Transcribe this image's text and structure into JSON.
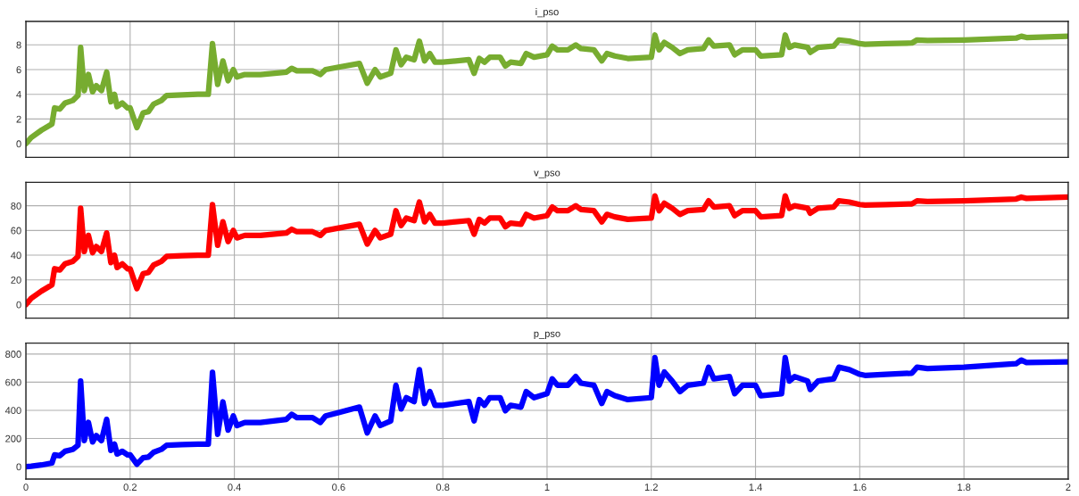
{
  "chart_data": [
    {
      "type": "line",
      "title": "i_pso",
      "color": "#77ac30",
      "grid": true,
      "tick_labels": "y",
      "x": [
        0,
        0.01,
        0.03,
        0.05,
        0.055,
        0.065,
        0.075,
        0.09,
        0.1,
        0.105,
        0.112,
        0.12,
        0.128,
        0.135,
        0.145,
        0.155,
        0.163,
        0.17,
        0.175,
        0.185,
        0.195,
        0.2,
        0.213,
        0.225,
        0.235,
        0.245,
        0.26,
        0.27,
        0.3,
        0.33,
        0.35,
        0.358,
        0.368,
        0.378,
        0.388,
        0.398,
        0.405,
        0.42,
        0.45,
        0.5,
        0.51,
        0.52,
        0.55,
        0.565,
        0.575,
        0.6,
        0.64,
        0.655,
        0.67,
        0.68,
        0.7,
        0.71,
        0.72,
        0.73,
        0.745,
        0.755,
        0.765,
        0.775,
        0.785,
        0.8,
        0.85,
        0.86,
        0.87,
        0.88,
        0.89,
        0.91,
        0.92,
        0.93,
        0.95,
        0.96,
        0.975,
        1.0,
        1.01,
        1.02,
        1.04,
        1.055,
        1.065,
        1.09,
        1.105,
        1.115,
        1.13,
        1.155,
        1.2,
        1.207,
        1.215,
        1.225,
        1.24,
        1.255,
        1.27,
        1.3,
        1.31,
        1.32,
        1.35,
        1.36,
        1.375,
        1.4,
        1.41,
        1.45,
        1.457,
        1.465,
        1.475,
        1.5,
        1.505,
        1.52,
        1.55,
        1.56,
        1.58,
        1.6,
        1.61,
        1.65,
        1.7,
        1.71,
        1.73,
        1.8,
        1.9,
        1.91,
        1.92,
        2.0
      ],
      "values": [
        0,
        0.5,
        1.1,
        1.6,
        2.9,
        2.8,
        3.3,
        3.5,
        3.9,
        7.8,
        4.3,
        5.6,
        4.2,
        4.7,
        4.3,
        5.8,
        3.4,
        4.0,
        3.0,
        3.3,
        2.9,
        2.9,
        1.3,
        2.5,
        2.6,
        3.2,
        3.5,
        3.9,
        3.95,
        4.0,
        4.0,
        8.1,
        4.8,
        6.7,
        5.1,
        6.0,
        5.4,
        5.6,
        5.6,
        5.8,
        6.1,
        5.9,
        5.9,
        5.6,
        6.0,
        6.2,
        6.5,
        4.9,
        6.0,
        5.4,
        5.7,
        7.6,
        6.4,
        7.0,
        6.8,
        8.3,
        6.7,
        7.3,
        6.6,
        6.6,
        6.8,
        5.7,
        6.9,
        6.6,
        7.0,
        7.0,
        6.3,
        6.6,
        6.5,
        7.3,
        7.0,
        7.2,
        7.9,
        7.6,
        7.6,
        8.0,
        7.7,
        7.6,
        6.7,
        7.3,
        7.1,
        6.9,
        7.0,
        8.8,
        7.6,
        8.2,
        7.8,
        7.3,
        7.6,
        7.7,
        8.4,
        7.9,
        8.0,
        7.2,
        7.6,
        7.6,
        7.1,
        7.2,
        8.8,
        7.8,
        8.0,
        7.8,
        7.4,
        7.8,
        7.9,
        8.4,
        8.3,
        8.1,
        8.05,
        8.1,
        8.15,
        8.4,
        8.35,
        8.4,
        8.55,
        8.7,
        8.6,
        8.7
      ],
      "xlim": [
        0,
        2
      ],
      "xticks": [
        0,
        0.2,
        0.4,
        0.6,
        0.8,
        1,
        1.2,
        1.4,
        1.6,
        1.8,
        2
      ],
      "ylim": [
        -1.1,
        9.9
      ],
      "yticks": [
        0,
        2,
        4,
        6,
        8
      ]
    },
    {
      "type": "line",
      "title": "v_pso",
      "color": "#ff0000",
      "grid": true,
      "tick_labels": "y",
      "x": [
        0,
        0.01,
        0.03,
        0.05,
        0.055,
        0.065,
        0.075,
        0.09,
        0.1,
        0.105,
        0.112,
        0.12,
        0.128,
        0.135,
        0.145,
        0.155,
        0.163,
        0.17,
        0.175,
        0.185,
        0.195,
        0.2,
        0.213,
        0.225,
        0.235,
        0.245,
        0.26,
        0.27,
        0.3,
        0.33,
        0.35,
        0.358,
        0.368,
        0.378,
        0.388,
        0.398,
        0.405,
        0.42,
        0.45,
        0.5,
        0.51,
        0.52,
        0.55,
        0.565,
        0.575,
        0.6,
        0.64,
        0.655,
        0.67,
        0.68,
        0.7,
        0.71,
        0.72,
        0.73,
        0.745,
        0.755,
        0.765,
        0.775,
        0.785,
        0.8,
        0.85,
        0.86,
        0.87,
        0.88,
        0.89,
        0.91,
        0.92,
        0.93,
        0.95,
        0.96,
        0.975,
        1.0,
        1.01,
        1.02,
        1.04,
        1.055,
        1.065,
        1.09,
        1.105,
        1.115,
        1.13,
        1.155,
        1.2,
        1.207,
        1.215,
        1.225,
        1.24,
        1.255,
        1.27,
        1.3,
        1.31,
        1.32,
        1.35,
        1.36,
        1.375,
        1.4,
        1.41,
        1.45,
        1.457,
        1.465,
        1.475,
        1.5,
        1.505,
        1.52,
        1.55,
        1.56,
        1.58,
        1.6,
        1.61,
        1.65,
        1.7,
        1.71,
        1.73,
        1.8,
        1.9,
        1.91,
        1.92,
        2.0
      ],
      "values": [
        0,
        5,
        11,
        16,
        29,
        28,
        33,
        35,
        39,
        78,
        43,
        56,
        42,
        47,
        43,
        58,
        34,
        40,
        30,
        33,
        29,
        29,
        13,
        25,
        26,
        32,
        35,
        39,
        39.5,
        40,
        40,
        81,
        48,
        67,
        51,
        60,
        54,
        56,
        56,
        58,
        61,
        59,
        59,
        56,
        60,
        62,
        65,
        49,
        60,
        54,
        57,
        76,
        64,
        70,
        68,
        83,
        67,
        73,
        66,
        66,
        68,
        57,
        69,
        66,
        70,
        70,
        63,
        66,
        65,
        73,
        70,
        72,
        79,
        76,
        76,
        80,
        77,
        76,
        67,
        73,
        71,
        69,
        70,
        88,
        76,
        82,
        78,
        73,
        76,
        77,
        84,
        79,
        80,
        72,
        76,
        76,
        71,
        72,
        88,
        78,
        80,
        78,
        74,
        78,
        79,
        84,
        83,
        81,
        80.5,
        81,
        81.5,
        84,
        83.5,
        84,
        85.5,
        87,
        86,
        87
      ],
      "xlim": [
        0,
        2
      ],
      "xticks": [
        0,
        0.2,
        0.4,
        0.6,
        0.8,
        1,
        1.2,
        1.4,
        1.6,
        1.8,
        2
      ],
      "ylim": [
        -11,
        99
      ],
      "yticks": [
        0,
        20,
        40,
        60,
        80
      ]
    },
    {
      "type": "line",
      "title": "p_pso",
      "color": "#0000ff",
      "grid": true,
      "x": [
        0,
        0.01,
        0.03,
        0.05,
        0.055,
        0.065,
        0.075,
        0.09,
        0.1,
        0.105,
        0.112,
        0.12,
        0.128,
        0.135,
        0.145,
        0.155,
        0.163,
        0.17,
        0.175,
        0.185,
        0.195,
        0.2,
        0.213,
        0.225,
        0.235,
        0.245,
        0.26,
        0.27,
        0.3,
        0.33,
        0.35,
        0.358,
        0.368,
        0.378,
        0.388,
        0.398,
        0.405,
        0.42,
        0.45,
        0.5,
        0.51,
        0.52,
        0.55,
        0.565,
        0.575,
        0.6,
        0.64,
        0.655,
        0.67,
        0.68,
        0.7,
        0.71,
        0.72,
        0.73,
        0.745,
        0.755,
        0.765,
        0.775,
        0.785,
        0.8,
        0.85,
        0.86,
        0.87,
        0.88,
        0.89,
        0.91,
        0.92,
        0.93,
        0.95,
        0.96,
        0.975,
        1.0,
        1.01,
        1.02,
        1.04,
        1.055,
        1.065,
        1.09,
        1.105,
        1.115,
        1.13,
        1.155,
        1.2,
        1.207,
        1.215,
        1.225,
        1.24,
        1.255,
        1.27,
        1.3,
        1.31,
        1.32,
        1.35,
        1.36,
        1.375,
        1.4,
        1.41,
        1.45,
        1.457,
        1.465,
        1.475,
        1.5,
        1.505,
        1.52,
        1.55,
        1.56,
        1.58,
        1.6,
        1.61,
        1.65,
        1.7,
        1.71,
        1.73,
        1.8,
        1.9,
        1.91,
        1.92,
        2.0
      ],
      "values": [
        0,
        3,
        12,
        26,
        84,
        78,
        109,
        123,
        152,
        608,
        185,
        314,
        176,
        221,
        185,
        336,
        116,
        160,
        90,
        109,
        84,
        84,
        17,
        63,
        68,
        102,
        123,
        152,
        156,
        160,
        160,
        670,
        230,
        460,
        260,
        360,
        292,
        314,
        314,
        336,
        372,
        348,
        348,
        314,
        360,
        384,
        423,
        240,
        360,
        292,
        325,
        578,
        410,
        490,
        462,
        689,
        449,
        533,
        436,
        436,
        462,
        325,
        476,
        436,
        490,
        490,
        397,
        436,
        423,
        533,
        490,
        518,
        624,
        578,
        578,
        640,
        593,
        578,
        449,
        533,
        504,
        476,
        490,
        774,
        578,
        672,
        608,
        533,
        578,
        593,
        706,
        624,
        640,
        518,
        578,
        578,
        504,
        518,
        774,
        608,
        640,
        608,
        548,
        608,
        624,
        706,
        689,
        656,
        648,
        656,
        664,
        706,
        697,
        706,
        731,
        757,
        740,
        745
      ],
      "xlim": [
        0,
        2
      ],
      "xticks": [
        0,
        0.2,
        0.4,
        0.6,
        0.8,
        1,
        1.2,
        1.4,
        1.6,
        1.8,
        2
      ],
      "ylim": [
        -88,
        877
      ],
      "yticks": [
        0,
        200,
        400,
        600,
        800
      ]
    }
  ]
}
